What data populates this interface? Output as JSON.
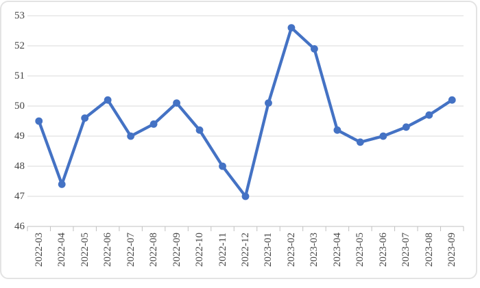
{
  "chart_data": {
    "type": "line",
    "title": "",
    "categories": [
      "2022-03",
      "2022-04",
      "2022-05",
      "2022-06",
      "2022-07",
      "2022-08",
      "2022-09",
      "2022-10",
      "2022-11",
      "2022-12",
      "2023-01",
      "2023-02",
      "2023-03",
      "2023-04",
      "2023-05",
      "2023-06",
      "2023-07",
      "2023-08",
      "2023-09"
    ],
    "series": [
      {
        "values": [
          49.5,
          47.4,
          49.6,
          50.2,
          49.0,
          49.4,
          50.1,
          49.2,
          48.0,
          47.0,
          50.1,
          52.6,
          51.9,
          49.2,
          48.8,
          49.0,
          49.3,
          49.7,
          50.2
        ],
        "color": "#4472C4",
        "marker": "circle"
      }
    ],
    "xlabel": "",
    "ylabel": "",
    "ylim": [
      46,
      53
    ],
    "yticks": [
      46,
      47,
      48,
      49,
      50,
      51,
      52,
      53
    ],
    "ytick_labels": [
      "46",
      "47",
      "48",
      "49",
      "50",
      "51",
      "52",
      "53"
    ],
    "grid": true,
    "legend": "none",
    "x_label_rotation": -90
  },
  "style": {
    "background": "#FFFFFF",
    "frame_border": "#E3E3E3",
    "gridline": "#D9D9D9",
    "axis_line": "#C0C0C0",
    "tick_mark": "#C0C0C0",
    "tick_label_color": "#454545",
    "line_color": "#4472C4"
  }
}
